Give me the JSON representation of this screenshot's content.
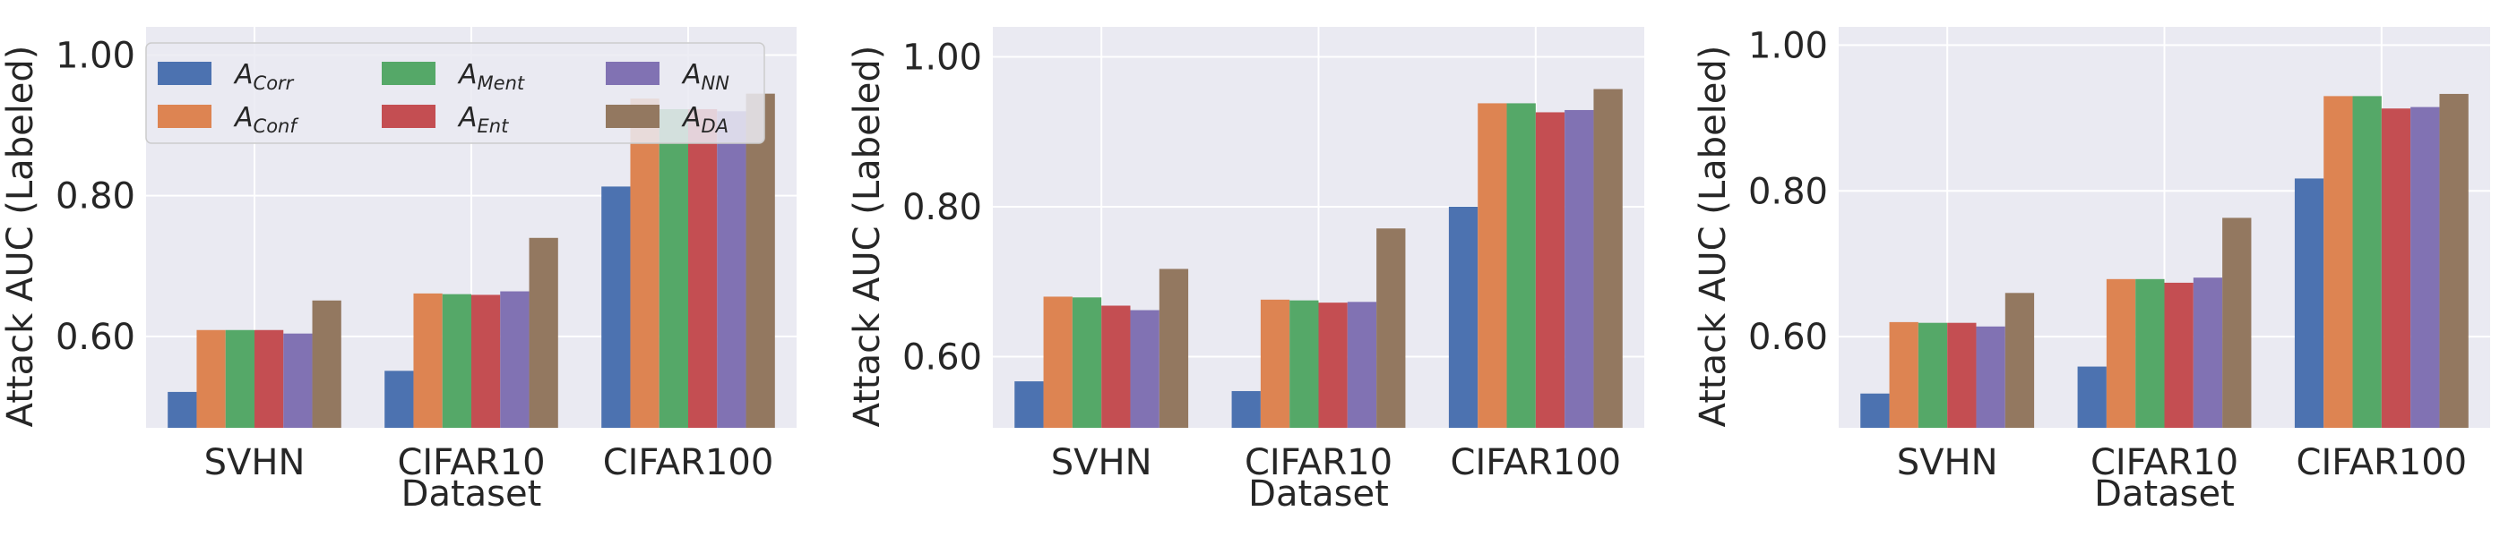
{
  "chart_data": [
    {
      "type": "bar",
      "categories": [
        "SVHN",
        "CIFAR10",
        "CIFAR100"
      ],
      "xlabel": "Dataset",
      "ylabel": "Attack AUC (Labeled)",
      "ylim": [
        0.47,
        1.04
      ],
      "yticks": [
        "0.60",
        "0.80",
        "1.00"
      ],
      "grid": true,
      "legend": "top-left",
      "series": [
        {
          "name": "Corr",
          "values": [
            0.521,
            0.551,
            0.813
          ]
        },
        {
          "name": "Conf",
          "values": [
            0.609,
            0.661,
            0.938
          ]
        },
        {
          "name": "Ment",
          "values": [
            0.609,
            0.66,
            0.923
          ]
        },
        {
          "name": "Ent",
          "values": [
            0.609,
            0.659,
            0.923
          ]
        },
        {
          "name": "NN",
          "values": [
            0.604,
            0.664,
            0.92
          ]
        },
        {
          "name": "DA",
          "values": [
            0.651,
            0.74,
            0.945
          ]
        }
      ]
    },
    {
      "type": "bar",
      "categories": [
        "SVHN",
        "CIFAR10",
        "CIFAR100"
      ],
      "xlabel": "Dataset",
      "ylabel": "Attack AUC (Labeled)",
      "ylim": [
        0.505,
        1.04
      ],
      "yticks": [
        "0.60",
        "0.80",
        "1.00"
      ],
      "grid": true,
      "series": [
        {
          "name": "Corr",
          "values": [
            0.567,
            0.554,
            0.8
          ]
        },
        {
          "name": "Conf",
          "values": [
            0.68,
            0.676,
            0.938
          ]
        },
        {
          "name": "Ment",
          "values": [
            0.679,
            0.675,
            0.938
          ]
        },
        {
          "name": "Ent",
          "values": [
            0.668,
            0.672,
            0.926
          ]
        },
        {
          "name": "NN",
          "values": [
            0.662,
            0.673,
            0.929
          ]
        },
        {
          "name": "DA",
          "values": [
            0.717,
            0.771,
            0.957
          ]
        }
      ]
    },
    {
      "type": "bar",
      "categories": [
        "SVHN",
        "CIFAR10",
        "CIFAR100"
      ],
      "xlabel": "Dataset",
      "ylabel": "Attack AUC (Labeled)",
      "ylim": [
        0.475,
        1.025
      ],
      "yticks": [
        "0.60",
        "0.80",
        "1.00"
      ],
      "grid": true,
      "series": [
        {
          "name": "Corr",
          "values": [
            0.522,
            0.559,
            0.817
          ]
        },
        {
          "name": "Conf",
          "values": [
            0.62,
            0.679,
            0.93
          ]
        },
        {
          "name": "Ment",
          "values": [
            0.619,
            0.679,
            0.93
          ]
        },
        {
          "name": "Ent",
          "values": [
            0.619,
            0.674,
            0.913
          ]
        },
        {
          "name": "NN",
          "values": [
            0.614,
            0.681,
            0.915
          ]
        },
        {
          "name": "DA",
          "values": [
            0.66,
            0.763,
            0.933
          ]
        }
      ]
    }
  ],
  "legend": {
    "symbol": "A",
    "colors": [
      "#4c72b0",
      "#dd8452",
      "#55a868",
      "#c44e52",
      "#8172b3",
      "#937860"
    ],
    "background": "#eaeaf2"
  }
}
